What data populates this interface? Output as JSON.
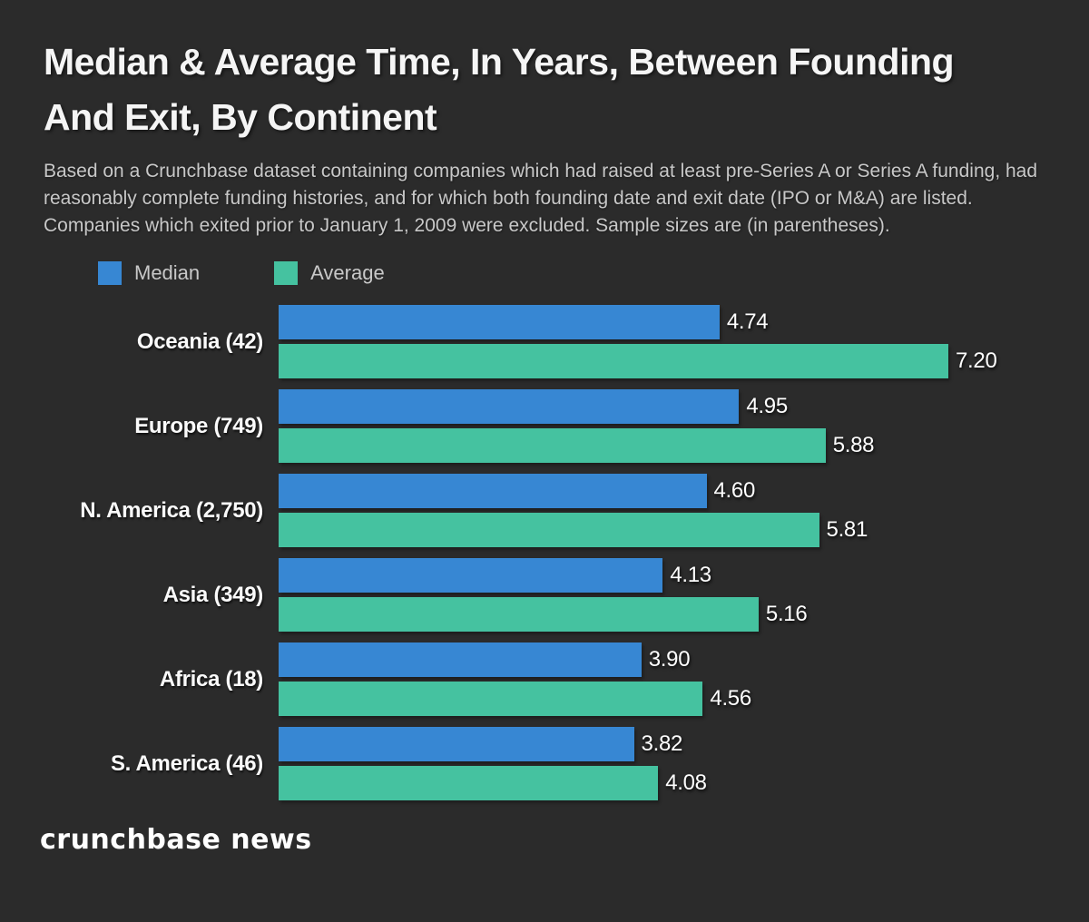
{
  "header": {
    "title_line1": "Median & Average Time, In Years, Between Founding",
    "title_line2": "And Exit, By Continent",
    "subtitle": "Based on a Crunchbase dataset containing companies which had raised at least pre-Series A or Series A funding, had reasonably complete funding histories, and for which both founding date and exit date (IPO or M&A) are listed. Companies which exited prior to January 1, 2009 were excluded. Sample sizes are (in parentheses)."
  },
  "chart_data": {
    "type": "bar",
    "orientation": "horizontal",
    "title": "Median & Average Time, In Years, Between Founding And Exit, By Continent",
    "units": "years",
    "categories": [
      "Oceania (42)",
      "Europe (749)",
      "N. America (2,750)",
      "Asia (349)",
      "Africa (18)",
      "S. America (46)"
    ],
    "series": [
      {
        "name": "Median",
        "color": "#3787d3",
        "values": [
          4.74,
          4.95,
          4.6,
          4.13,
          3.9,
          3.82
        ]
      },
      {
        "name": "Average",
        "color": "#45c2a0",
        "values": [
          7.2,
          5.88,
          5.81,
          5.16,
          4.56,
          4.08
        ]
      }
    ],
    "xlim": [
      0,
      8
    ],
    "value_labels": true,
    "value_decimals": 2,
    "grid": false,
    "legend_position": "top-left"
  },
  "colors": {
    "background": "#2b2b2b",
    "median": "#3787d3",
    "average": "#45c2a0"
  },
  "footer": {
    "brand": "crunchbase news"
  }
}
